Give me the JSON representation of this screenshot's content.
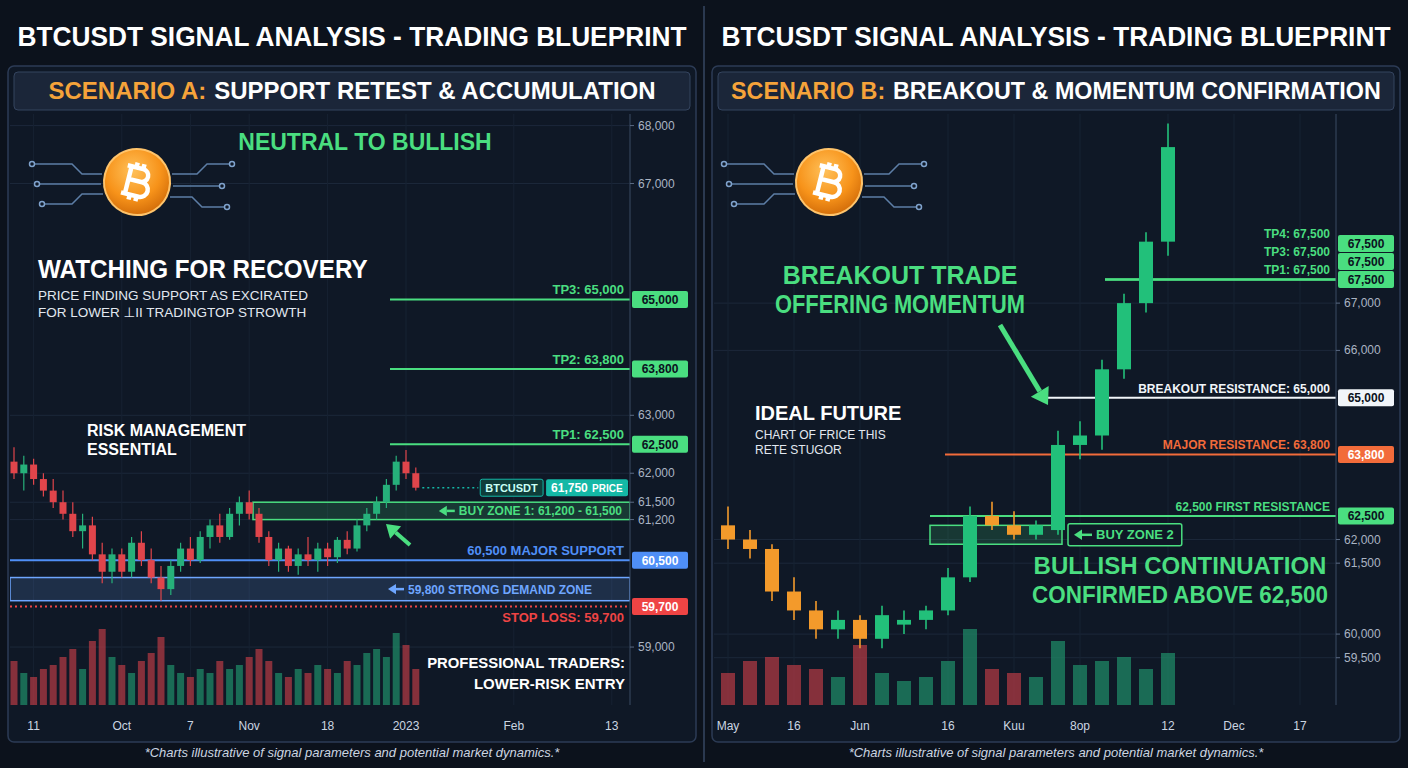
{
  "chart_data": [
    {
      "type": "candlestick",
      "title": "BTCUSDT SIGNAL ANALYSIS - TRADING BLUEPRINT",
      "scenario": "SCENARIO A:",
      "subtitle": "SUPPORT RETEST & ACCUMULATION",
      "categories": [
        null,
        null,
        "11",
        null,
        null,
        null,
        null,
        null,
        null,
        null,
        null,
        "Oct",
        null,
        null,
        null,
        null,
        null,
        null,
        "7",
        null,
        null,
        null,
        null,
        null,
        "Nov",
        null,
        null,
        null,
        null,
        null,
        null,
        null,
        "18",
        null,
        null,
        null,
        null,
        null,
        null,
        null,
        "2023",
        null,
        null,
        null,
        null,
        null,
        null,
        null,
        null,
        null,
        null,
        "Feb",
        null,
        null,
        null,
        null,
        null,
        null,
        null,
        null,
        null,
        "13",
        null
      ],
      "open": [
        62200,
        62000,
        62150,
        61900,
        61700,
        61500,
        61300,
        61000,
        61100,
        60600,
        60300,
        60600,
        60300,
        60800,
        60500,
        60200,
        60000,
        60400,
        60700,
        60500,
        60900,
        61100,
        60900,
        61300,
        61500,
        61300,
        60900,
        60500,
        60700,
        60400,
        60600,
        60500,
        60700,
        60550,
        60850,
        60700,
        61100,
        61300,
        61500,
        61800,
        62200,
        62000,
        null,
        null,
        null,
        null,
        null,
        null,
        null,
        null,
        null,
        null,
        null,
        null,
        null,
        null,
        null,
        null,
        null,
        null,
        null,
        null,
        null
      ],
      "high": [
        62450,
        62300,
        62250,
        62000,
        61900,
        61700,
        61500,
        61300,
        61250,
        60800,
        60700,
        60700,
        60900,
        61000,
        60700,
        60400,
        60500,
        60800,
        60900,
        61000,
        61200,
        61300,
        61400,
        61600,
        61700,
        61400,
        61000,
        60800,
        60750,
        60700,
        60900,
        60800,
        60800,
        60900,
        61000,
        61200,
        61400,
        61600,
        61900,
        62300,
        62400,
        62100,
        null,
        null,
        null,
        null,
        null,
        null,
        null,
        null,
        null,
        null,
        null,
        null,
        null,
        null,
        null,
        null,
        null,
        null,
        null,
        null,
        null
      ],
      "low": [
        61900,
        61700,
        61800,
        61600,
        61400,
        61200,
        60900,
        60700,
        60500,
        60100,
        60100,
        60200,
        60200,
        60400,
        60100,
        59800,
        59900,
        60300,
        60400,
        60450,
        60700,
        60800,
        60850,
        61100,
        61200,
        60800,
        60400,
        60300,
        60300,
        60250,
        60400,
        60300,
        60400,
        60450,
        60600,
        60650,
        61000,
        61200,
        61400,
        61700,
        61900,
        61700,
        null,
        null,
        null,
        null,
        null,
        null,
        null,
        null,
        null,
        null,
        null,
        null,
        null,
        null,
        null,
        null,
        null,
        null,
        null,
        null,
        null
      ],
      "close": [
        62000,
        62150,
        61900,
        61700,
        61500,
        61300,
        61000,
        61100,
        60600,
        60300,
        60600,
        60300,
        60800,
        60500,
        60200,
        60000,
        60400,
        60700,
        60500,
        60900,
        61100,
        60900,
        61300,
        61500,
        61300,
        60900,
        60500,
        60700,
        60400,
        60600,
        60500,
        60700,
        60550,
        60850,
        60700,
        61100,
        61300,
        61500,
        61800,
        62200,
        62000,
        61750,
        null,
        null,
        null,
        null,
        null,
        null,
        null,
        null,
        null,
        null,
        null,
        null,
        null,
        null,
        null,
        null,
        null,
        null,
        null,
        null,
        null
      ],
      "volume": [
        55,
        40,
        35,
        45,
        50,
        60,
        70,
        45,
        80,
        95,
        60,
        50,
        40,
        55,
        65,
        85,
        50,
        40,
        35,
        45,
        40,
        55,
        45,
        50,
        60,
        70,
        55,
        40,
        35,
        45,
        40,
        50,
        45,
        40,
        55,
        50,
        65,
        70,
        60,
        90,
        75,
        45,
        null,
        null,
        null,
        null,
        null,
        null,
        null,
        null,
        null,
        null,
        null,
        null,
        null,
        null,
        null,
        null,
        null,
        null,
        null,
        null,
        null
      ],
      "volume_lim": [
        0,
        100
      ],
      "ylim": [
        58000,
        68200
      ],
      "yticks": [
        {
          "value": 59000,
          "label": "59,000"
        },
        {
          "value": 61200,
          "label": "61,200"
        },
        {
          "value": 61500,
          "label": "61,500"
        },
        {
          "value": 62000,
          "label": "62,000"
        },
        {
          "value": 63000,
          "label": "63,000"
        },
        {
          "value": 67000,
          "label": "67,000"
        },
        {
          "value": 68000,
          "label": "68,000"
        }
      ],
      "grid": true,
      "levels": [
        {
          "label": "TP3: 65,000",
          "value": 65000,
          "badge": "65,000",
          "color": "#4ade80"
        },
        {
          "label": "TP2: 63,800",
          "value": 63800,
          "badge": "63,800",
          "color": "#4ade80"
        },
        {
          "label": "TP1: 62,500",
          "value": 62500,
          "badge": "62,500",
          "color": "#4ade80"
        },
        {
          "label": "60,500 MAJOR SUPPORT",
          "value": 60500,
          "badge": "60,500",
          "color": "#4f8ff7"
        },
        {
          "label": "STOP LOSS: 59,700",
          "value": 59700,
          "badge": "59,700",
          "color": "#ef4444",
          "line_style": "dotted"
        }
      ],
      "zones": [
        {
          "label": "BUY ZONE 1: 61,200 - 61,500",
          "range": [
            61200,
            61500
          ],
          "color": "#4ade80"
        },
        {
          "label": "59,800 STRONG DEMAND ZONE",
          "range": [
            59800,
            60200
          ],
          "color": "#6ea6ff"
        }
      ],
      "price": {
        "symbol": "BTCUSDT",
        "value": 61750,
        "label": "61,750",
        "caption": "PRICE",
        "color": "#14b8a6",
        "line_style": "dotted"
      },
      "annotations": [
        {
          "lines": [
            "NEUTRAL TO BULLISH"
          ],
          "color": "#4ade80"
        },
        {
          "lines": [
            "WATCHING FOR RECOVERY"
          ],
          "color": "#ffffff"
        },
        {
          "lines": [
            "PRICE FINDING SUPPORT AS EXCIRATED",
            "FOR LOWER ⊥II TRADINGTOP STROWTH"
          ],
          "color": "#e2e8f0"
        },
        {
          "lines": [
            "RISK MANAGEMENT",
            "ESSENTIAL"
          ],
          "color": "#ffffff"
        },
        {
          "lines": [
            "PROFESSIONAL TRADERS:",
            "LOWER-RISK ENTRY"
          ],
          "color": "#ffffff"
        }
      ],
      "footnote": "*Charts illustrative of signal parameters and potential market dynamics.*"
    },
    {
      "type": "candlestick",
      "title": "BTCUSDT SIGNAL ANALYSIS - TRADING BLUEPRINT",
      "scenario": "SCENARIO B:",
      "subtitle": "BREAKOUT & MOMENTUM CONFIRMATION",
      "categories": [
        "May",
        null,
        null,
        "16",
        null,
        null,
        "Jun",
        null,
        null,
        null,
        "16",
        null,
        null,
        "Kuu",
        null,
        null,
        "8op",
        null,
        null,
        null,
        "12",
        null,
        null,
        "Dec",
        null,
        null,
        "17"
      ],
      "open": [
        62300,
        62000,
        61800,
        60900,
        60500,
        60100,
        60300,
        59900,
        60200,
        60300,
        60500,
        61200,
        62500,
        62300,
        62100,
        62200,
        64000,
        64200,
        65600,
        67000,
        68300,
        null,
        null,
        null,
        null,
        null,
        null
      ],
      "high": [
        62700,
        62200,
        61900,
        61200,
        60700,
        60500,
        60400,
        60600,
        60500,
        60600,
        61400,
        62700,
        62800,
        62600,
        62400,
        64300,
        64500,
        65800,
        67200,
        68500,
        70800,
        null,
        null,
        null,
        null,
        null,
        null
      ],
      "low": [
        61800,
        61600,
        60700,
        60300,
        59900,
        59900,
        59700,
        59700,
        60000,
        60100,
        60400,
        61100,
        62200,
        62000,
        62000,
        62100,
        63700,
        63900,
        65400,
        66800,
        68000,
        null,
        null,
        null,
        null,
        null,
        null
      ],
      "close": [
        62000,
        61800,
        60900,
        60500,
        60100,
        60300,
        59900,
        60400,
        60300,
        60500,
        61200,
        62500,
        62300,
        62100,
        62300,
        64000,
        64200,
        65600,
        67000,
        68300,
        70300,
        null,
        null,
        null,
        null,
        null,
        null
      ],
      "colors": [
        "#f39a2b",
        "#f39a2b",
        "#f39a2b",
        "#f39a2b",
        "#f39a2b",
        "#22c07a",
        "#f39a2b",
        "#22c07a",
        "#22c07a",
        "#22c07a",
        "#22c07a",
        "#22c07a",
        "#f39a2b",
        "#f39a2b",
        "#22c07a",
        "#22c07a",
        "#22c07a",
        "#22c07a",
        "#22c07a",
        "#22c07a",
        "#22c07a",
        null,
        null,
        null,
        null,
        null,
        null
      ],
      "volume": [
        40,
        55,
        60,
        50,
        45,
        35,
        75,
        40,
        30,
        35,
        55,
        95,
        45,
        40,
        35,
        80,
        50,
        55,
        60,
        45,
        65,
        null,
        null,
        null,
        null,
        null,
        null
      ],
      "volume_lim": [
        0,
        100
      ],
      "ylim": [
        58500,
        71000
      ],
      "yticks": [
        {
          "value": 59500,
          "label": "59,500"
        },
        {
          "value": 60000,
          "label": "60,000"
        },
        {
          "value": 61500,
          "label": "61,500"
        },
        {
          "value": 62000,
          "label": "62,000"
        },
        {
          "value": 66000,
          "label": "66,000"
        },
        {
          "value": 67000,
          "label": "67,000"
        }
      ],
      "grid": true,
      "levels": [
        {
          "label": "TP4: 67,500",
          "value": 67500,
          "badge": "67,500",
          "color": "#4ade80"
        },
        {
          "label": "TP3: 67,500",
          "value": 67500,
          "badge": "67,500",
          "color": "#4ade80"
        },
        {
          "label": "TP1: 67,500",
          "value": 67500,
          "badge": "67,500",
          "color": "#4ade80"
        },
        {
          "label": "BREAKOUT RESISTANCE: 65,000",
          "value": 65000,
          "badge": "65,000",
          "color": "#f1f5f9"
        },
        {
          "label": "MAJOR RESISTANCE: 63,800",
          "value": 63800,
          "badge": "63,800",
          "color": "#f26b3a"
        },
        {
          "label": "62,500 FIRST RESISTANCE",
          "value": 62500,
          "badge": "62,500",
          "color": "#4ade80"
        }
      ],
      "zones": [
        {
          "label": "BUY ZONE 2",
          "range": [
            61900,
            62300
          ],
          "color": "#4ade80"
        }
      ],
      "annotations": [
        {
          "lines": [
            "BREAKOUT TRADE",
            "OFFERING MOMENTUM"
          ],
          "color": "#4ade80"
        },
        {
          "lines": [
            "IDEAL FUTURE"
          ],
          "color": "#ffffff"
        },
        {
          "lines": [
            "CHART OF FRICE THIS",
            "RETE STUGOR"
          ],
          "color": "#e2e8f0"
        },
        {
          "lines": [
            "BULLISH CONTINUATION",
            "CONFIRMED ABOVE 62,500"
          ],
          "color": "#4ade80"
        }
      ],
      "footnote": "*Charts illustrative of signal parameters and potential market dynamics.*"
    }
  ]
}
